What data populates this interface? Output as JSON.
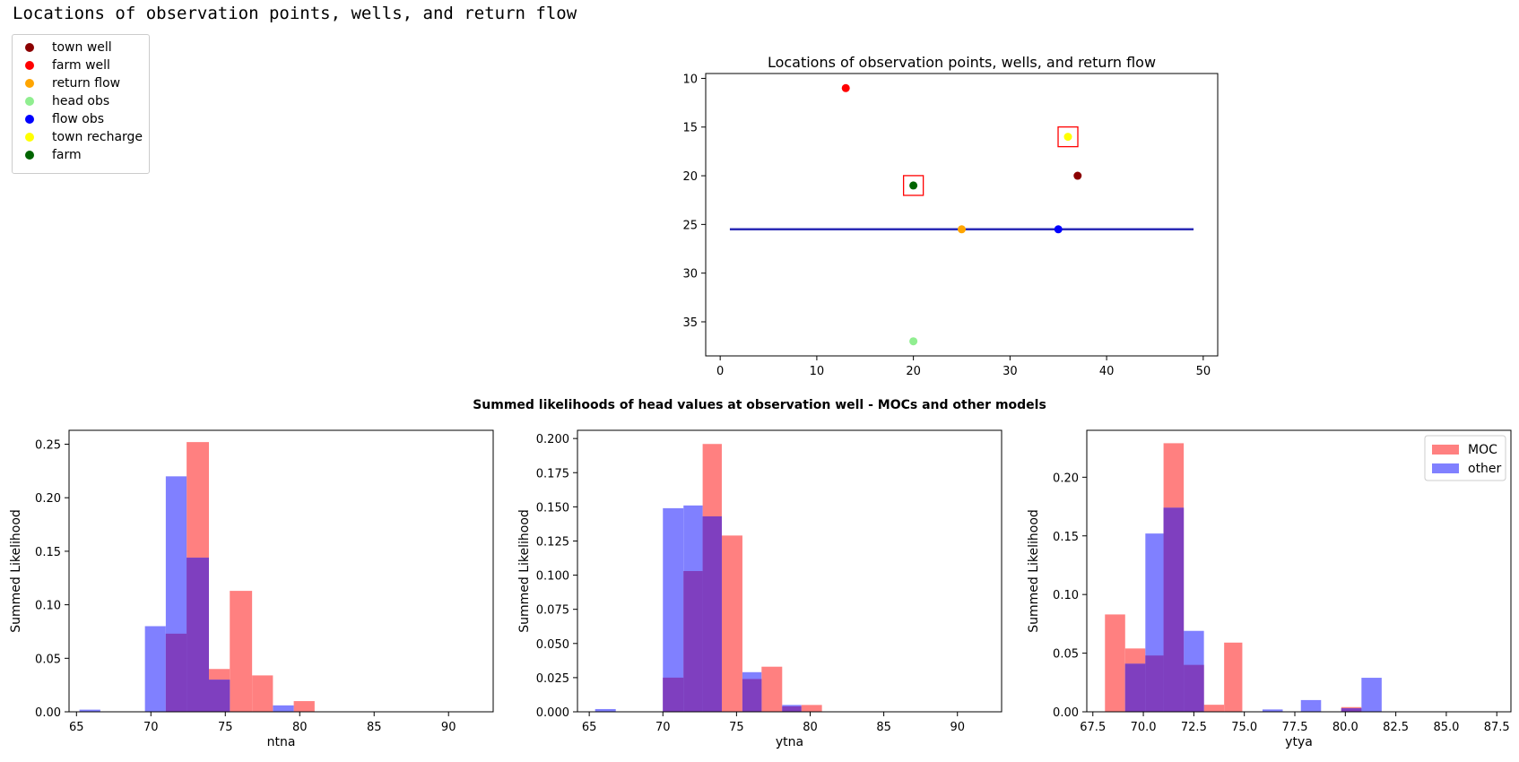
{
  "output_text": "Locations of observation points, wells, and return flow",
  "colors": {
    "moc": "#ff8080",
    "other": "#8080ff",
    "overlap": "#7f3fbf",
    "river": "#2b2bb5",
    "highlight": "#ff0000"
  },
  "chart_data": [
    {
      "type": "scatter",
      "title": "Locations of observation points, wells, and return flow",
      "xlim": [
        -1.5,
        51.5
      ],
      "ylim": [
        38.5,
        9.5
      ],
      "y_inverted": true,
      "xticks": [
        "0",
        "10",
        "20",
        "30",
        "40",
        "50"
      ],
      "yticks": [
        "10",
        "15",
        "20",
        "25",
        "30",
        "35"
      ],
      "legend_position": "outside-upper-left",
      "legend": [
        {
          "label": "town well",
          "color": "#8b0000"
        },
        {
          "label": "farm well",
          "color": "#ff0000"
        },
        {
          "label": "return flow",
          "color": "#ffa500"
        },
        {
          "label": "head obs",
          "color": "#90ee90"
        },
        {
          "label": "flow obs",
          "color": "#0000ff"
        },
        {
          "label": "town recharge",
          "color": "#ffff00"
        },
        {
          "label": "farm",
          "color": "#006400"
        }
      ],
      "points": [
        {
          "name": "town well",
          "x": 37,
          "y": 20,
          "color": "#8b0000"
        },
        {
          "name": "farm well",
          "x": 13,
          "y": 11,
          "color": "#ff0000"
        },
        {
          "name": "return flow",
          "x": 25,
          "y": 25.5,
          "color": "#ffa500"
        },
        {
          "name": "head obs",
          "x": 20,
          "y": 37,
          "color": "#90ee90"
        },
        {
          "name": "flow obs",
          "x": 35,
          "y": 25.5,
          "color": "#0000ff"
        },
        {
          "name": "town recharge",
          "x": 36,
          "y": 16,
          "color": "#ffff00",
          "highlighted": true
        },
        {
          "name": "farm",
          "x": 20,
          "y": 21,
          "color": "#006400",
          "highlighted": true
        }
      ],
      "river": {
        "x": [
          1,
          49
        ],
        "y": 25.5
      }
    },
    {
      "type": "histogram",
      "suptitle": "Summed likelihoods of head values at observation well - MOCs and other models",
      "legend": [
        "MOC",
        "other"
      ],
      "legend_position": "top-right (third panel)",
      "panels": [
        {
          "xlabel": "ntna",
          "ylabel": "Summed Likelihood",
          "xlim": [
            64.5,
            93
          ],
          "ylim": [
            0,
            0.263
          ],
          "xticks": [
            "65",
            "70",
            "75",
            "80",
            "85",
            "90"
          ],
          "yticks": [
            "0.00",
            "0.05",
            "0.10",
            "0.15",
            "0.20",
            "0.25"
          ],
          "moc": [
            {
              "x0": 71,
              "x1": 72.4,
              "v": 0.073
            },
            {
              "x0": 72.4,
              "x1": 73.9,
              "v": 0.252
            },
            {
              "x0": 73.9,
              "x1": 75.3,
              "v": 0.04
            },
            {
              "x0": 75.3,
              "x1": 76.8,
              "v": 0.113
            },
            {
              "x0": 76.8,
              "x1": 78.2,
              "v": 0.034
            },
            {
              "x0": 79.6,
              "x1": 81,
              "v": 0.01
            }
          ],
          "other": [
            {
              "x0": 65.2,
              "x1": 66.6,
              "v": 0.002
            },
            {
              "x0": 69.6,
              "x1": 71,
              "v": 0.08
            },
            {
              "x0": 71,
              "x1": 72.4,
              "v": 0.22
            },
            {
              "x0": 72.4,
              "x1": 73.9,
              "v": 0.144
            },
            {
              "x0": 73.9,
              "x1": 75.3,
              "v": 0.03
            },
            {
              "x0": 78.2,
              "x1": 79.6,
              "v": 0.006
            }
          ]
        },
        {
          "xlabel": "ytna",
          "ylabel": "Summed Likelihood",
          "xlim": [
            64.2,
            93
          ],
          "ylim": [
            0,
            0.206
          ],
          "xticks": [
            "65",
            "70",
            "75",
            "80",
            "85",
            "90"
          ],
          "yticks": [
            "0.000",
            "0.025",
            "0.050",
            "0.075",
            "0.100",
            "0.125",
            "0.150",
            "0.175",
            "0.200"
          ],
          "moc": [
            {
              "x0": 70,
              "x1": 71.4,
              "v": 0.025
            },
            {
              "x0": 71.4,
              "x1": 72.7,
              "v": 0.103
            },
            {
              "x0": 72.7,
              "x1": 74,
              "v": 0.196
            },
            {
              "x0": 74,
              "x1": 75.4,
              "v": 0.129
            },
            {
              "x0": 75.4,
              "x1": 76.7,
              "v": 0.024
            },
            {
              "x0": 76.7,
              "x1": 78.1,
              "v": 0.033
            },
            {
              "x0": 78.1,
              "x1": 79.4,
              "v": 0.004
            },
            {
              "x0": 79.4,
              "x1": 80.8,
              "v": 0.005
            }
          ],
          "other": [
            {
              "x0": 65.4,
              "x1": 66.8,
              "v": 0.002
            },
            {
              "x0": 70,
              "x1": 71.4,
              "v": 0.149
            },
            {
              "x0": 71.4,
              "x1": 72.7,
              "v": 0.151
            },
            {
              "x0": 72.7,
              "x1": 74,
              "v": 0.143
            },
            {
              "x0": 75.4,
              "x1": 76.7,
              "v": 0.029
            },
            {
              "x0": 78.1,
              "x1": 79.4,
              "v": 0.005
            }
          ]
        },
        {
          "xlabel": "ytya",
          "ylabel": "Summed Likelihood",
          "xlim": [
            67.2,
            88.2
          ],
          "ylim": [
            0,
            0.24
          ],
          "xticks": [
            "67.5",
            "70.0",
            "72.5",
            "75.0",
            "77.5",
            "80.0",
            "82.5",
            "85.0",
            "87.5"
          ],
          "yticks": [
            "0.00",
            "0.05",
            "0.10",
            "0.15",
            "0.20"
          ],
          "moc": [
            {
              "x0": 68.1,
              "x1": 69.1,
              "v": 0.083
            },
            {
              "x0": 69.1,
              "x1": 70.1,
              "v": 0.054
            },
            {
              "x0": 70.1,
              "x1": 71,
              "v": 0.048
            },
            {
              "x0": 71,
              "x1": 72,
              "v": 0.229
            },
            {
              "x0": 72,
              "x1": 73,
              "v": 0.04
            },
            {
              "x0": 73,
              "x1": 74,
              "v": 0.006
            },
            {
              "x0": 74,
              "x1": 74.9,
              "v": 0.059
            },
            {
              "x0": 79.8,
              "x1": 80.8,
              "v": 0.004
            }
          ],
          "other": [
            {
              "x0": 69.1,
              "x1": 70.1,
              "v": 0.041
            },
            {
              "x0": 70.1,
              "x1": 71,
              "v": 0.152
            },
            {
              "x0": 71,
              "x1": 72,
              "v": 0.174
            },
            {
              "x0": 72,
              "x1": 73,
              "v": 0.069
            },
            {
              "x0": 75.9,
              "x1": 76.9,
              "v": 0.002
            },
            {
              "x0": 77.8,
              "x1": 78.8,
              "v": 0.01
            },
            {
              "x0": 79.8,
              "x1": 80.8,
              "v": 0.003
            },
            {
              "x0": 80.8,
              "x1": 81.8,
              "v": 0.029
            }
          ]
        }
      ]
    }
  ]
}
